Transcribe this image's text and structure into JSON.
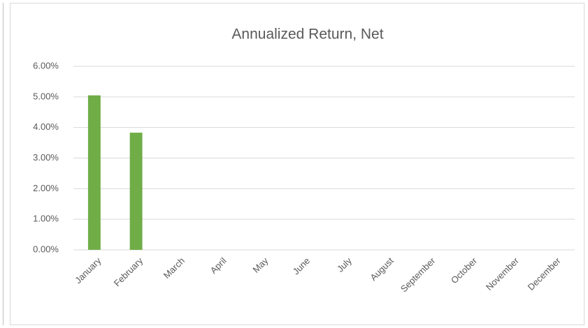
{
  "chart_data": {
    "type": "bar",
    "title": "Annualized Return, Net",
    "categories": [
      "January",
      "February",
      "March",
      "April",
      "May",
      "June",
      "July",
      "August",
      "September",
      "October",
      "November",
      "December"
    ],
    "values": [
      5.05,
      3.83,
      null,
      null,
      null,
      null,
      null,
      null,
      null,
      null,
      null,
      null
    ],
    "color": "#70ad47",
    "ylim": [
      0,
      6
    ],
    "yticks": [
      {
        "value": 0,
        "label": "0.00%"
      },
      {
        "value": 1,
        "label": "1.00%"
      },
      {
        "value": 2,
        "label": "2.00%"
      },
      {
        "value": 3,
        "label": "3.00%"
      },
      {
        "value": 4,
        "label": "4.00%"
      },
      {
        "value": 5,
        "label": "5.00%"
      },
      {
        "value": 6,
        "label": "6.00%"
      }
    ],
    "grid": true
  }
}
